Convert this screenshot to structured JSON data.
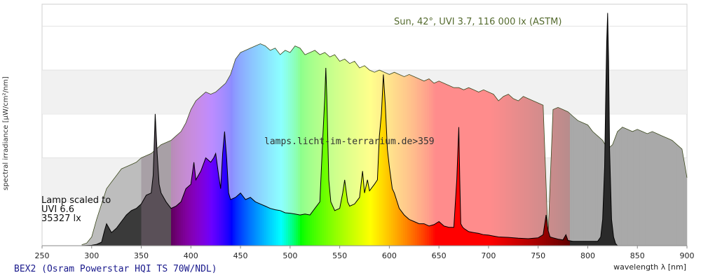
{
  "chart_data": {
    "type": "area",
    "xlabel": "wavelength λ [nm]",
    "ylabel": "spectral irradiance [µW/cm²/nm]",
    "xlim": [
      250,
      900
    ],
    "x_ticks": [
      250,
      300,
      350,
      400,
      450,
      500,
      550,
      600,
      650,
      700,
      750,
      800,
      850,
      900
    ],
    "y_ticks": [
      0,
      1,
      2,
      3,
      4,
      5
    ],
    "ylim": [
      0,
      5.5
    ],
    "grid": "horizontal bands",
    "annotations": {
      "sun": "Sun, 42°, UVI 3.7, 116 000 lx (ASTM)",
      "lamp_line1": "Lamp scaled to",
      "lamp_line2": "UVI 6.6",
      "lamp_line3": "35327 lx",
      "watermark": "lamps.licht-im-terrarium.de>359",
      "footer": "BEX2 (Osram Powerstar HQI TS 70W/NDL)"
    },
    "series": [
      {
        "name": "Sun, 42°, UVI 3.7, 116 000 lx (ASTM)",
        "x": [
          290,
          295,
          300,
          305,
          310,
          315,
          320,
          325,
          330,
          335,
          340,
          345,
          350,
          355,
          360,
          365,
          370,
          375,
          380,
          385,
          390,
          395,
          400,
          405,
          410,
          415,
          420,
          425,
          430,
          435,
          440,
          445,
          450,
          455,
          460,
          465,
          470,
          475,
          480,
          485,
          490,
          495,
          500,
          505,
          510,
          515,
          520,
          525,
          530,
          535,
          540,
          545,
          550,
          555,
          560,
          565,
          570,
          575,
          580,
          585,
          590,
          595,
          600,
          605,
          610,
          615,
          620,
          625,
          630,
          635,
          640,
          645,
          650,
          655,
          660,
          665,
          670,
          675,
          680,
          685,
          690,
          695,
          700,
          705,
          710,
          715,
          720,
          725,
          730,
          735,
          740,
          745,
          750,
          755,
          760,
          765,
          770,
          775,
          780,
          785,
          790,
          795,
          800,
          805,
          810,
          815,
          820,
          825,
          830,
          835,
          840,
          845,
          850,
          855,
          860,
          865,
          870,
          875,
          880,
          885,
          890,
          895,
          900
        ],
        "values": [
          0.02,
          0.06,
          0.2,
          0.6,
          0.95,
          1.3,
          1.45,
          1.6,
          1.75,
          1.8,
          1.85,
          1.9,
          2.0,
          2.05,
          2.1,
          2.2,
          2.3,
          2.35,
          2.4,
          2.5,
          2.6,
          2.8,
          3.1,
          3.3,
          3.4,
          3.5,
          3.45,
          3.5,
          3.6,
          3.7,
          3.9,
          4.25,
          4.4,
          4.45,
          4.5,
          4.55,
          4.6,
          4.55,
          4.45,
          4.5,
          4.35,
          4.45,
          4.4,
          4.55,
          4.5,
          4.35,
          4.4,
          4.45,
          4.35,
          4.4,
          4.3,
          4.35,
          4.2,
          4.25,
          4.15,
          4.2,
          4.05,
          4.1,
          4.0,
          3.95,
          4.0,
          3.95,
          3.9,
          3.95,
          3.9,
          3.85,
          3.9,
          3.85,
          3.8,
          3.75,
          3.8,
          3.7,
          3.75,
          3.7,
          3.65,
          3.6,
          3.6,
          3.55,
          3.6,
          3.55,
          3.5,
          3.55,
          3.5,
          3.45,
          3.3,
          3.4,
          3.45,
          3.35,
          3.3,
          3.4,
          3.35,
          3.3,
          3.25,
          3.2,
          0.2,
          3.1,
          3.15,
          3.1,
          3.05,
          2.95,
          2.85,
          2.8,
          2.75,
          2.6,
          2.5,
          2.4,
          2.2,
          2.3,
          2.6,
          2.7,
          2.65,
          2.6,
          2.65,
          2.6,
          2.55,
          2.6,
          2.55,
          2.5,
          2.45,
          2.4,
          2.3,
          2.2,
          1.55
        ]
      },
      {
        "name": "BEX2 (Osram Powerstar HQI TS 70W/NDL)",
        "x": [
          290,
          300,
          305,
          310,
          313,
          315,
          320,
          325,
          330,
          335,
          340,
          345,
          350,
          355,
          360,
          362,
          364,
          366,
          368,
          370,
          375,
          380,
          385,
          390,
          395,
          400,
          403,
          405,
          410,
          415,
          420,
          423,
          425,
          428,
          430,
          432,
          434,
          436,
          438,
          440,
          445,
          450,
          455,
          460,
          465,
          470,
          475,
          480,
          485,
          490,
          495,
          500,
          505,
          510,
          515,
          520,
          525,
          530,
          533,
          535,
          536,
          537,
          539,
          541,
          545,
          550,
          553,
          555,
          558,
          560,
          565,
          570,
          573,
          575,
          578,
          580,
          585,
          588,
          590,
          592,
          594,
          596,
          598,
          600,
          603,
          605,
          610,
          615,
          620,
          625,
          630,
          635,
          640,
          645,
          650,
          655,
          660,
          665,
          668,
          670,
          671,
          672,
          674,
          676,
          680,
          685,
          690,
          695,
          700,
          705,
          710,
          720,
          730,
          740,
          750,
          755,
          758,
          760,
          762,
          765,
          770,
          775,
          778,
          780,
          785,
          790,
          795,
          800,
          805,
          810,
          813,
          815,
          817,
          818,
          819,
          820,
          821,
          822,
          824,
          826,
          828,
          830
        ],
        "values": [
          0.0,
          0.01,
          0.03,
          0.08,
          0.35,
          0.5,
          0.3,
          0.4,
          0.55,
          0.7,
          0.8,
          0.85,
          0.95,
          1.15,
          1.2,
          1.6,
          3.0,
          2.1,
          1.4,
          1.2,
          1.0,
          0.85,
          0.9,
          1.0,
          1.3,
          1.4,
          1.9,
          1.5,
          1.7,
          2.0,
          1.9,
          2.0,
          2.1,
          1.6,
          1.3,
          2.1,
          2.6,
          2.0,
          1.2,
          1.05,
          1.1,
          1.2,
          1.05,
          1.1,
          1.0,
          0.95,
          0.9,
          0.85,
          0.82,
          0.8,
          0.75,
          0.74,
          0.72,
          0.7,
          0.72,
          0.7,
          0.85,
          1.0,
          2.5,
          3.4,
          4.05,
          3.4,
          1.5,
          1.0,
          0.8,
          0.85,
          1.2,
          1.5,
          1.0,
          0.9,
          0.95,
          1.1,
          1.7,
          1.2,
          1.5,
          1.25,
          1.4,
          1.5,
          2.5,
          3.0,
          3.9,
          3.2,
          2.2,
          1.8,
          1.3,
          1.2,
          0.85,
          0.7,
          0.6,
          0.55,
          0.5,
          0.5,
          0.45,
          0.48,
          0.55,
          0.45,
          0.42,
          0.42,
          1.5,
          2.7,
          1.5,
          0.5,
          0.42,
          0.38,
          0.32,
          0.3,
          0.28,
          0.25,
          0.24,
          0.22,
          0.2,
          0.19,
          0.17,
          0.16,
          0.18,
          0.25,
          0.7,
          0.35,
          0.2,
          0.18,
          0.15,
          0.13,
          0.25,
          0.12,
          0.1,
          0.1,
          0.1,
          0.1,
          0.1,
          0.1,
          0.2,
          0.6,
          1.8,
          3.2,
          4.6,
          5.3,
          4.2,
          2.2,
          0.6,
          0.2,
          0.05,
          0.0
        ]
      }
    ]
  }
}
